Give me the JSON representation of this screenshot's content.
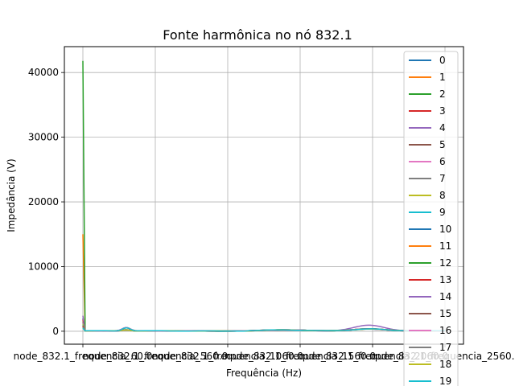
{
  "chart_data": {
    "type": "line",
    "title": "Fonte harmônica no nó 832.1",
    "xlabel": "Frequência (Hz)",
    "ylabel": "Impedância (V)",
    "ylim": [
      -2000,
      44000
    ],
    "y_ticks": [
      0,
      10000,
      20000,
      30000,
      40000
    ],
    "y_tick_labels": [
      "0",
      "10000",
      "20000",
      "30000",
      "40000"
    ],
    "x_tick_labels": [
      "node_832.1_frequencia_60.0",
      "node_832.1_frequencia_560.0",
      "node_832.1_frequencia_1060.0",
      "node_832.1_frequencia_1560.0",
      "node_832.1_frequencia_2060.0",
      "node_832.1_frequencia_2560.0"
    ],
    "grid": true,
    "legend_position": "right",
    "series": [
      {
        "name": "0",
        "color": "#1f77b4",
        "peak": 2000
      },
      {
        "name": "1",
        "color": "#ff7f0e",
        "peak": 15000
      },
      {
        "name": "2",
        "color": "#2ca02c",
        "peak": 41800
      },
      {
        "name": "3",
        "color": "#d62728",
        "peak": 1800
      },
      {
        "name": "4",
        "color": "#9467bd",
        "peak": 2400
      },
      {
        "name": "5",
        "color": "#8c564b",
        "peak": 1500
      },
      {
        "name": "6",
        "color": "#e377c2",
        "peak": 1300
      },
      {
        "name": "7",
        "color": "#7f7f7f",
        "peak": 1200
      },
      {
        "name": "8",
        "color": "#bcbd22",
        "peak": 1100
      },
      {
        "name": "9",
        "color": "#17becf",
        "peak": 1000
      },
      {
        "name": "10",
        "color": "#1f77b4",
        "peak": 900
      },
      {
        "name": "11",
        "color": "#ff7f0e",
        "peak": 900
      },
      {
        "name": "12",
        "color": "#2ca02c",
        "peak": 800
      },
      {
        "name": "13",
        "color": "#d62728",
        "peak": 800
      },
      {
        "name": "14",
        "color": "#9467bd",
        "peak": 700
      },
      {
        "name": "15",
        "color": "#8c564b",
        "peak": 700
      },
      {
        "name": "16",
        "color": "#e377c2",
        "peak": 600
      },
      {
        "name": "17",
        "color": "#7f7f7f",
        "peak": 600
      },
      {
        "name": "18",
        "color": "#bcbd22",
        "peak": 500
      },
      {
        "name": "19",
        "color": "#17becf",
        "peak": 500
      }
    ]
  }
}
